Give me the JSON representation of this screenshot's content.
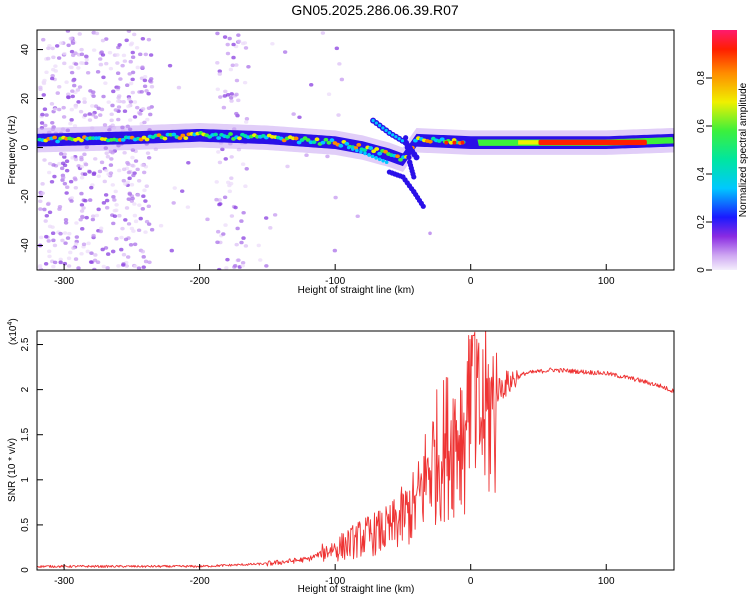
{
  "title": "GN05.2025.286.06.39.R07",
  "chart_data": [
    {
      "type": "heatmap",
      "name": "spectrogram",
      "xlabel": "Height of straight line (km)",
      "ylabel": "Frequency (Hz)",
      "xlim": [
        -320,
        150
      ],
      "ylim": [
        -50,
        48
      ],
      "xticks": [
        -300,
        -200,
        -100,
        0,
        100
      ],
      "yticks": [
        -40,
        -20,
        0,
        20,
        40
      ],
      "ridge": [
        [
          -320,
          3
        ],
        [
          -250,
          4
        ],
        [
          -200,
          5
        ],
        [
          -150,
          4
        ],
        [
          -100,
          2
        ],
        [
          -80,
          0
        ],
        [
          -60,
          -3
        ],
        [
          -50,
          -5
        ],
        [
          -40,
          3
        ],
        [
          0,
          2
        ],
        [
          50,
          2
        ],
        [
          100,
          2
        ],
        [
          150,
          3
        ]
      ],
      "colorbar": {
        "label": "Normalized spectral amplitude",
        "ticks": [
          0.0,
          0.2,
          0.4,
          0.6,
          0.8
        ],
        "range": [
          0,
          1
        ]
      }
    },
    {
      "type": "line",
      "name": "snr",
      "xlabel": "Height of straight line (km)",
      "ylabel": "SNR (10 * v/v)",
      "scale_label": "(x10",
      "scale_exponent": "4",
      "scale_close": ")",
      "xlim": [
        -320,
        150
      ],
      "ylim": [
        0,
        2.65
      ],
      "xticks": [
        -300,
        -200,
        -100,
        0,
        100
      ],
      "yticks": [
        0.0,
        0.5,
        1.0,
        1.5,
        2.0,
        2.5
      ],
      "color": "#ee3333",
      "envelope": [
        [
          -320,
          0.04
        ],
        [
          -200,
          0.04
        ],
        [
          -150,
          0.07
        ],
        [
          -120,
          0.12
        ],
        [
          -100,
          0.25
        ],
        [
          -80,
          0.4
        ],
        [
          -60,
          0.5
        ],
        [
          -40,
          0.8
        ],
        [
          -30,
          1.3
        ],
        [
          -20,
          1.5
        ],
        [
          -10,
          1.7
        ],
        [
          0,
          1.8
        ],
        [
          10,
          1.9
        ],
        [
          20,
          2.0
        ],
        [
          30,
          2.1
        ],
        [
          40,
          2.18
        ],
        [
          60,
          2.22
        ],
        [
          80,
          2.2
        ],
        [
          100,
          2.18
        ],
        [
          120,
          2.12
        ],
        [
          140,
          2.04
        ],
        [
          150,
          1.98
        ]
      ]
    }
  ]
}
